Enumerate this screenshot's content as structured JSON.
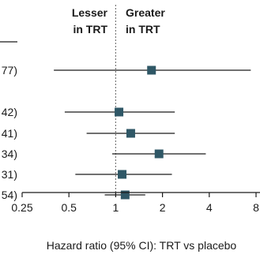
{
  "header": {
    "left_line1": "Lesser",
    "left_line2": "in TRT",
    "right_line1": "Greater",
    "right_line2": "in TRT"
  },
  "colors": {
    "marker": "#2f5766",
    "line": "#1a1a1a",
    "reference": "#7a7a7a"
  },
  "chart_data": {
    "type": "forest",
    "xscale": "log2",
    "xlim": [
      0.25,
      8
    ],
    "xticks": [
      0.25,
      0.5,
      1,
      2,
      4,
      8
    ],
    "xtick_labels": [
      "0.25",
      "0.5",
      "1",
      "2",
      "4",
      "8"
    ],
    "xlabel": "Hazard ratio (95% CI): TRT vs placebo",
    "reference_line": 1,
    "rows": [
      {
        "label": "77)",
        "hr": 1.7,
        "lo": 0.4,
        "hi": 7.4
      },
      {
        "label": "42)",
        "hr": 1.05,
        "lo": 0.47,
        "hi": 2.4
      },
      {
        "label": "41)",
        "hr": 1.25,
        "lo": 0.65,
        "hi": 2.4
      },
      {
        "label": "34)",
        "hr": 1.9,
        "lo": 0.95,
        "hi": 3.8
      },
      {
        "label": "31)",
        "hr": 1.1,
        "lo": 0.55,
        "hi": 2.3
      },
      {
        "label": "54)",
        "hr": 1.15,
        "lo": 0.85,
        "hi": 1.55
      }
    ]
  }
}
